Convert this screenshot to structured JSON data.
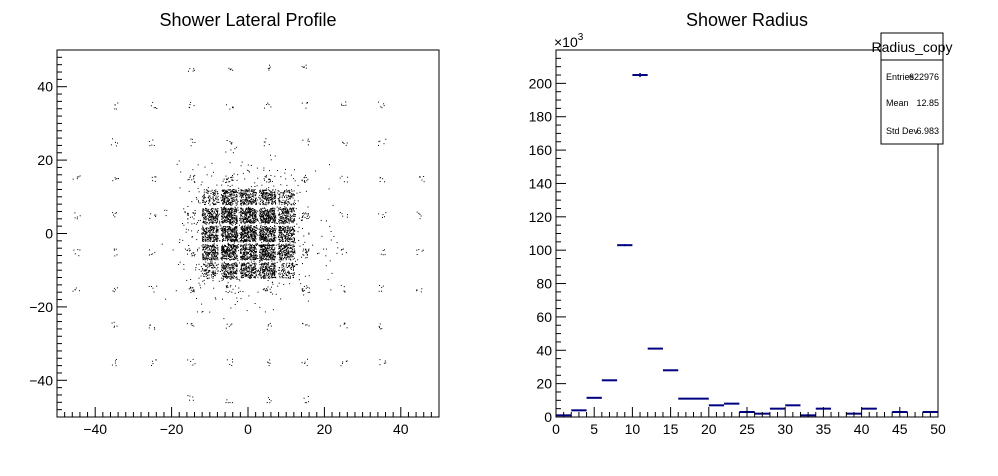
{
  "chart_data": [
    {
      "type": "scatter",
      "title": "Shower Lateral Profile",
      "xlabel": "",
      "ylabel": "",
      "xlim": [
        -50,
        50
      ],
      "ylim": [
        -50,
        50
      ],
      "x_ticks": [
        -40,
        -20,
        0,
        20,
        40
      ],
      "y_ticks": [
        -40,
        -20,
        0,
        20,
        40
      ],
      "x_tick_labels": [
        "−40",
        "−20",
        "0",
        "20",
        "40"
      ],
      "y_tick_labels": [
        "−40",
        "−20",
        "0",
        "20",
        "40"
      ],
      "marker_color": "#000000",
      "grid": false,
      "description_of_distribution": {
        "cell_pitch": 5,
        "dense_core_half_width": 12,
        "sparse_halo_radius": 50
      }
    },
    {
      "type": "bar",
      "title": "Shower Radius",
      "xlabel": "",
      "ylabel": "",
      "xlim": [
        0,
        50
      ],
      "ylim": [
        0,
        220000
      ],
      "y_multiplier_label": "×10",
      "y_multiplier_exp": "3",
      "x_ticks": [
        0,
        5,
        10,
        15,
        20,
        25,
        30,
        35,
        40,
        45,
        50
      ],
      "y_ticks": [
        0,
        20,
        40,
        60,
        80,
        100,
        120,
        140,
        160,
        180,
        200
      ],
      "bin_width": 2,
      "bins": [
        {
          "x0": 0,
          "x1": 2,
          "y": 1000,
          "err": 0
        },
        {
          "x0": 2,
          "x1": 4,
          "y": 4000,
          "err": 0
        },
        {
          "x0": 4,
          "x1": 6,
          "y": 11500,
          "err": 0
        },
        {
          "x0": 6,
          "x1": 8,
          "y": 22000,
          "err": 0
        },
        {
          "x0": 8,
          "x1": 10,
          "y": 103000,
          "err": 600
        },
        {
          "x0": 10,
          "x1": 12,
          "y": 205000,
          "err": 1200
        },
        {
          "x0": 12,
          "x1": 14,
          "y": 41000,
          "err": 0
        },
        {
          "x0": 14,
          "x1": 16,
          "y": 28000,
          "err": 0
        },
        {
          "x0": 16,
          "x1": 18,
          "y": 11000,
          "err": 0
        },
        {
          "x0": 18,
          "x1": 20,
          "y": 11000,
          "err": 0
        },
        {
          "x0": 20,
          "x1": 22,
          "y": 7000,
          "err": 0
        },
        {
          "x0": 22,
          "x1": 24,
          "y": 8000,
          "err": 0
        },
        {
          "x0": 24,
          "x1": 26,
          "y": 3000,
          "err": 0
        },
        {
          "x0": 26,
          "x1": 28,
          "y": 2000,
          "err": 0
        },
        {
          "x0": 28,
          "x1": 30,
          "y": 5000,
          "err": 0
        },
        {
          "x0": 30,
          "x1": 32,
          "y": 7000,
          "err": 0
        },
        {
          "x0": 32,
          "x1": 34,
          "y": 1000,
          "err": 0
        },
        {
          "x0": 34,
          "x1": 36,
          "y": 5000,
          "err": 0
        },
        {
          "x0": 36,
          "x1": 38,
          "y": 0,
          "err": 0
        },
        {
          "x0": 38,
          "x1": 40,
          "y": 2000,
          "err": 0
        },
        {
          "x0": 40,
          "x1": 42,
          "y": 5000,
          "err": 0
        },
        {
          "x0": 42,
          "x1": 44,
          "y": 0,
          "err": 0
        },
        {
          "x0": 44,
          "x1": 46,
          "y": 3000,
          "err": 0
        },
        {
          "x0": 46,
          "x1": 48,
          "y": 0,
          "err": 0
        },
        {
          "x0": 48,
          "x1": 50,
          "y": 3000,
          "err": 0
        }
      ],
      "line_color": "#000080",
      "stats_box": {
        "name": "Radius_copy",
        "rows": [
          {
            "label": "Entries",
            "value": "622976"
          },
          {
            "label": "Mean",
            "value": "12.85"
          },
          {
            "label": "Std Dev",
            "value": "6.983"
          }
        ]
      }
    }
  ]
}
